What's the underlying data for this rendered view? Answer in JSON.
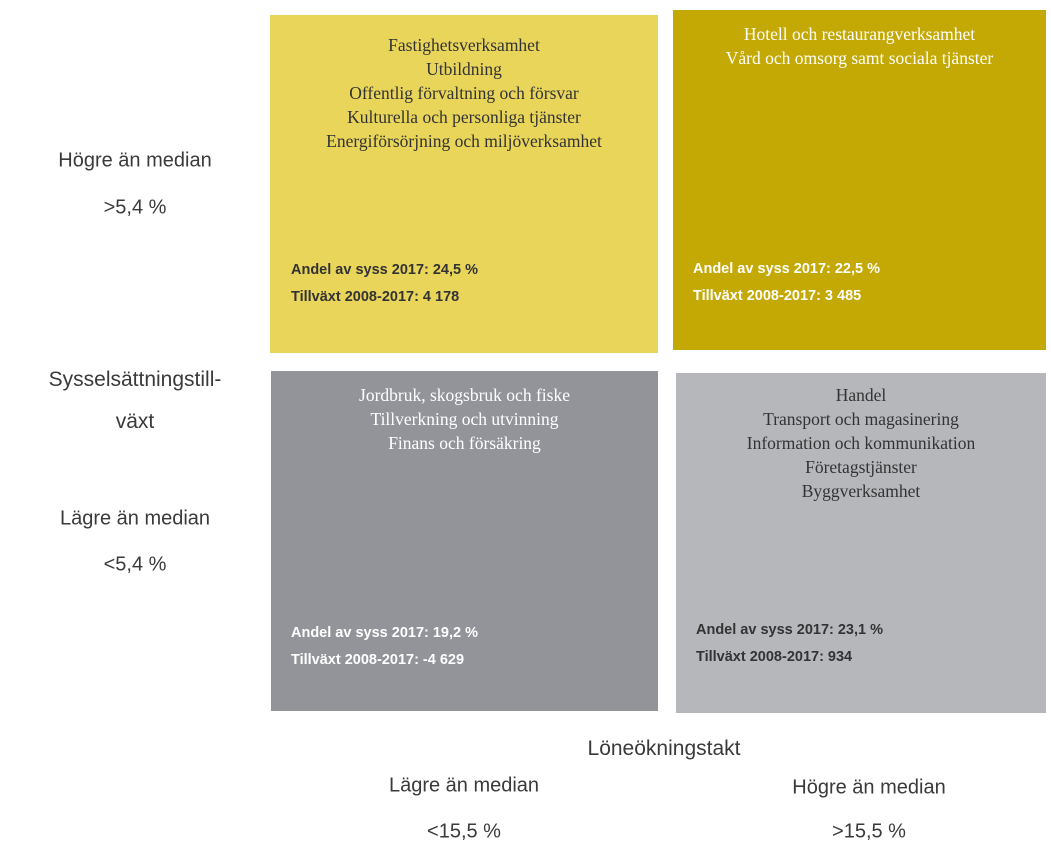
{
  "y_axis": {
    "title_lines": [
      "Sysselsättningstill-",
      "växt"
    ],
    "high": {
      "label": "Högre än median",
      "threshold": ">5,4 %"
    },
    "low": {
      "label": "Lägre än median",
      "threshold": "<5,4 %"
    }
  },
  "x_axis": {
    "title": "Löneökningstakt",
    "low": {
      "label": "Lägre än median",
      "threshold": "<15,5 %"
    },
    "high": {
      "label": "Högre än median",
      "threshold": ">15,5 %"
    }
  },
  "quadrants": [
    {
      "sectors": [
        "Fastighetsverksamhet",
        "Utbildning",
        "Offentlig förvaltning och försvar",
        "Kulturella och personliga tjänster",
        "Energiförsörjning och miljöverksamhet"
      ],
      "stats": [
        "Andel av syss 2017: 24,5 %",
        "Tillväxt 2008-2017: 4 178"
      ]
    },
    {
      "sectors": [
        "Hotell och restaurangverksamhet",
        "Vård och omsorg samt sociala tjänster"
      ],
      "stats": [
        "Andel av syss 2017: 22,5 %",
        "Tillväxt 2008-2017: 3 485"
      ]
    },
    {
      "sectors": [
        "Jordbruk, skogsbruk och fiske",
        "Tillverkning och utvinning",
        "Finans och försäkring"
      ],
      "stats": [
        "Andel av syss 2017: 19,2 %",
        "Tillväxt 2008-2017: -4 629"
      ]
    },
    {
      "sectors": [
        "Handel",
        "Transport och magasinering",
        "Information och kommunikation",
        "Företagstjänster",
        "Byggverksamhet"
      ],
      "stats": [
        "Andel av syss 2017: 23,1 %",
        "Tillväxt 2008-2017: 934"
      ]
    }
  ]
}
